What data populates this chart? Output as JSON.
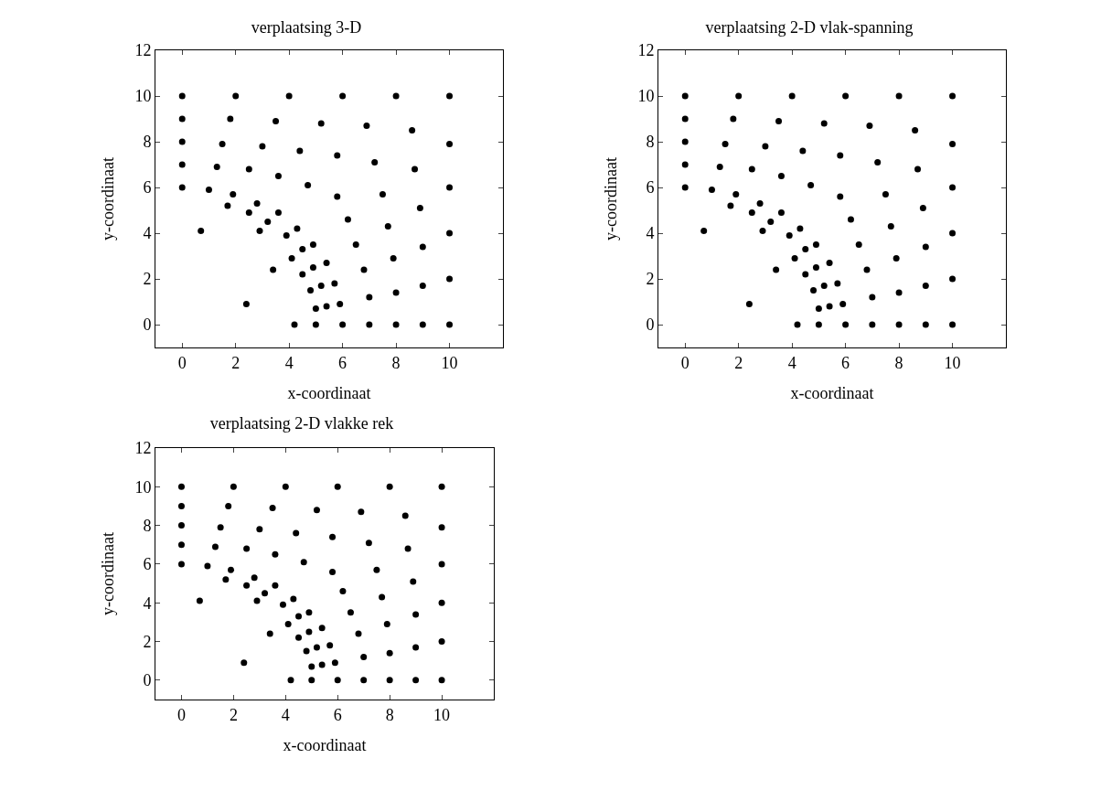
{
  "chart_data": [
    {
      "type": "scatter",
      "title": "verplaatsing 3-D",
      "xlabel": "x-coordinaat",
      "ylabel": "y-coordinaat",
      "xlim": [
        -1,
        12
      ],
      "ylim": [
        -1,
        12
      ],
      "xticks": [
        0,
        2,
        4,
        6,
        8,
        10
      ],
      "yticks": [
        0,
        2,
        4,
        6,
        8,
        10,
        12
      ],
      "grid": false,
      "marker": "circle",
      "color": "#000000",
      "x": [
        0,
        2,
        4,
        6,
        8,
        10,
        0,
        1.8,
        3.5,
        5.2,
        6.9,
        8.6,
        0,
        1.5,
        3,
        4.4,
        5.8,
        7.2,
        8.7,
        10,
        0,
        1.3,
        2.5,
        3.6,
        4.7,
        5.8,
        7.5,
        8.9,
        0,
        1,
        1.9,
        1.7,
        2.8,
        2.5,
        3.6,
        3.2,
        10,
        0.7,
        2.9,
        3.9,
        4.3,
        6.2,
        7.7,
        10,
        9,
        4.5,
        4.9,
        6.5,
        7.9,
        4.1,
        4.9,
        5.4,
        6.8,
        3.4,
        4.5,
        5.2,
        5.7,
        7,
        8,
        9,
        10,
        4.8,
        5,
        5.4,
        5.9,
        2.4,
        4.2,
        5,
        6,
        7,
        8,
        9,
        10
      ],
      "values": [
        10,
        10,
        10,
        10,
        10,
        10,
        9,
        9,
        8.9,
        8.8,
        8.7,
        8.5,
        8,
        7.9,
        7.8,
        7.6,
        7.4,
        7.1,
        6.8,
        7.9,
        7,
        6.9,
        6.8,
        6.5,
        6.1,
        5.6,
        5.7,
        5.1,
        6,
        5.9,
        5.7,
        5.2,
        5.3,
        4.9,
        4.9,
        4.5,
        6,
        4.1,
        4.1,
        3.9,
        4.2,
        4.6,
        4.3,
        4,
        3.4,
        3.3,
        3.5,
        3.5,
        2.9,
        2.9,
        2.5,
        2.7,
        2.4,
        2.4,
        2.2,
        1.7,
        1.8,
        1.2,
        1.4,
        1.7,
        2,
        1.5,
        0.7,
        0.8,
        0.9,
        0.9,
        0,
        0,
        0,
        0,
        0,
        0,
        0
      ]
    },
    {
      "type": "scatter",
      "title": "verplaatsing 2-D vlak-spanning",
      "xlabel": "x-coordinaat",
      "ylabel": "y-coordinaat",
      "xlim": [
        -1,
        12
      ],
      "ylim": [
        -1,
        12
      ],
      "xticks": [
        0,
        2,
        4,
        6,
        8,
        10
      ],
      "yticks": [
        0,
        2,
        4,
        6,
        8,
        10,
        12
      ],
      "grid": false,
      "marker": "circle",
      "color": "#000000",
      "x": [
        0,
        2,
        4,
        6,
        8,
        10,
        0,
        1.8,
        3.5,
        5.2,
        6.9,
        8.6,
        0,
        1.5,
        3,
        4.4,
        5.8,
        7.2,
        8.7,
        10,
        0,
        1.3,
        2.5,
        3.6,
        4.7,
        5.8,
        7.5,
        8.9,
        0,
        1,
        1.9,
        1.7,
        2.8,
        2.5,
        3.6,
        3.2,
        10,
        0.7,
        2.9,
        3.9,
        4.3,
        6.2,
        7.7,
        10,
        9,
        4.5,
        4.9,
        6.5,
        7.9,
        4.1,
        4.9,
        5.4,
        6.8,
        3.4,
        4.5,
        5.2,
        5.7,
        7,
        8,
        9,
        10,
        4.8,
        5,
        5.4,
        5.9,
        2.4,
        4.2,
        5,
        6,
        7,
        8,
        9,
        10
      ],
      "values": [
        10,
        10,
        10,
        10,
        10,
        10,
        9,
        9,
        8.9,
        8.8,
        8.7,
        8.5,
        8,
        7.9,
        7.8,
        7.6,
        7.4,
        7.1,
        6.8,
        7.9,
        7,
        6.9,
        6.8,
        6.5,
        6.1,
        5.6,
        5.7,
        5.1,
        6,
        5.9,
        5.7,
        5.2,
        5.3,
        4.9,
        4.9,
        4.5,
        6,
        4.1,
        4.1,
        3.9,
        4.2,
        4.6,
        4.3,
        4,
        3.4,
        3.3,
        3.5,
        3.5,
        2.9,
        2.9,
        2.5,
        2.7,
        2.4,
        2.4,
        2.2,
        1.7,
        1.8,
        1.2,
        1.4,
        1.7,
        2,
        1.5,
        0.7,
        0.8,
        0.9,
        0.9,
        0,
        0,
        0,
        0,
        0,
        0,
        0
      ]
    },
    {
      "type": "scatter",
      "title": "verplaatsing 2-D vlakke rek",
      "xlabel": "x-coordinaat",
      "ylabel": "y-coordinaat",
      "xlim": [
        -1,
        12
      ],
      "ylim": [
        -1,
        12
      ],
      "xticks": [
        0,
        2,
        4,
        6,
        8,
        10
      ],
      "yticks": [
        0,
        2,
        4,
        6,
        8,
        10,
        12
      ],
      "grid": false,
      "marker": "circle",
      "color": "#000000",
      "x": [
        0,
        2,
        4,
        6,
        8,
        10,
        0,
        1.8,
        3.5,
        5.2,
        6.9,
        8.6,
        0,
        1.5,
        3,
        4.4,
        5.8,
        7.2,
        8.7,
        10,
        0,
        1.3,
        2.5,
        3.6,
        4.7,
        5.8,
        7.5,
        8.9,
        0,
        1,
        1.9,
        1.7,
        2.8,
        2.5,
        3.6,
        3.2,
        10,
        0.7,
        2.9,
        3.9,
        4.3,
        6.2,
        7.7,
        10,
        9,
        4.5,
        4.9,
        6.5,
        7.9,
        4.1,
        4.9,
        5.4,
        6.8,
        3.4,
        4.5,
        5.2,
        5.7,
        7,
        8,
        9,
        10,
        4.8,
        5,
        5.4,
        5.9,
        2.4,
        4.2,
        5,
        6,
        7,
        8,
        9,
        10
      ],
      "values": [
        10,
        10,
        10,
        10,
        10,
        10,
        9,
        9,
        8.9,
        8.8,
        8.7,
        8.5,
        8,
        7.9,
        7.8,
        7.6,
        7.4,
        7.1,
        6.8,
        7.9,
        7,
        6.9,
        6.8,
        6.5,
        6.1,
        5.6,
        5.7,
        5.1,
        6,
        5.9,
        5.7,
        5.2,
        5.3,
        4.9,
        4.9,
        4.5,
        6,
        4.1,
        4.1,
        3.9,
        4.2,
        4.6,
        4.3,
        4,
        3.4,
        3.3,
        3.5,
        3.5,
        2.9,
        2.9,
        2.5,
        2.7,
        2.4,
        2.4,
        2.2,
        1.7,
        1.8,
        1.2,
        1.4,
        1.7,
        2,
        1.5,
        0.7,
        0.8,
        0.9,
        0.9,
        0,
        0,
        0,
        0,
        0,
        0,
        0
      ]
    }
  ]
}
